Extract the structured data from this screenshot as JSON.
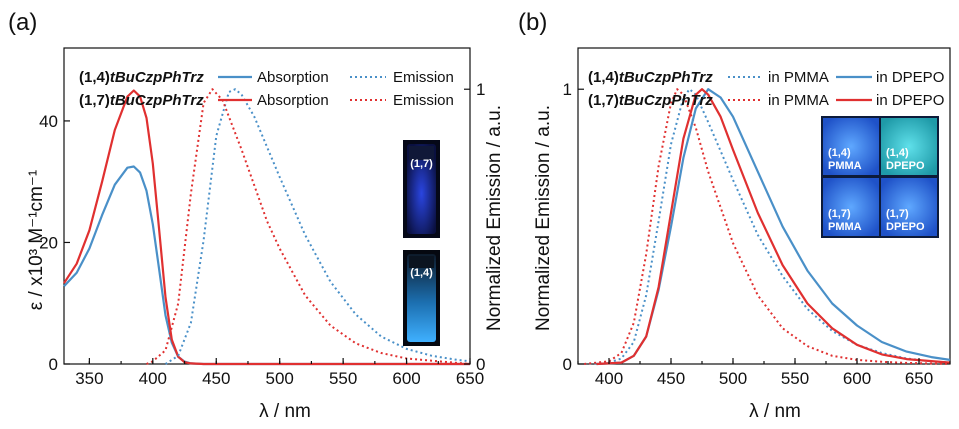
{
  "colors": {
    "blue": "#4a90c8",
    "red": "#e03030"
  },
  "chart_data": [
    {
      "panel": "(a)",
      "type": "line",
      "xlabel": "λ / nm",
      "ylabel_left": "ε / x10³ M⁻¹cm⁻¹",
      "ylabel_right": "Normalized Emission / a.u.",
      "xlim": [
        330,
        650
      ],
      "ylim_left": [
        0,
        52
      ],
      "ylim_right": [
        0,
        1.15
      ],
      "xticks": [
        "350",
        "400",
        "450",
        "500",
        "550",
        "600",
        "650"
      ],
      "yticks_left": [
        "0",
        "20",
        "40"
      ],
      "yticks_right": [
        "0",
        "1"
      ],
      "legend": [
        {
          "compound": "(1,4)",
          "compound_bold": "tBuCzpPhTrz",
          "solid": "Absorption",
          "dotted": "Emission"
        },
        {
          "compound": "(1,7)",
          "compound_bold": "tBuCzpPhTrz",
          "solid": "Absorption",
          "dotted": "Emission"
        }
      ],
      "inset_labels": [
        "(1,7)",
        "(1,4)"
      ],
      "series": [
        {
          "name": "(1,4)tBuCzpPhTrz Absorption",
          "axis": "left",
          "style": "solid",
          "color": "blue",
          "x": [
            330,
            340,
            350,
            360,
            370,
            380,
            385,
            390,
            395,
            400,
            405,
            410,
            415,
            420,
            425,
            430,
            440,
            450,
            650
          ],
          "y": [
            12.8,
            15,
            19,
            24.5,
            29.5,
            32.3,
            32.5,
            31.5,
            28.5,
            23,
            15.5,
            8,
            3.5,
            1.2,
            0.4,
            0.1,
            0,
            0,
            0
          ]
        },
        {
          "name": "(1,7)tBuCzpPhTrz Absorption",
          "axis": "left",
          "style": "solid",
          "color": "red",
          "x": [
            330,
            340,
            350,
            360,
            370,
            380,
            385,
            390,
            395,
            400,
            405,
            410,
            415,
            420,
            425,
            430,
            440,
            450,
            650
          ],
          "y": [
            13.3,
            16.5,
            22,
            30,
            38.5,
            44,
            45,
            44,
            40.5,
            33,
            22,
            11,
            4,
            1.2,
            0.3,
            0.1,
            0,
            0,
            0
          ]
        },
        {
          "name": "(1,4)tBuCzpPhTrz Emission",
          "axis": "right",
          "style": "dotted",
          "color": "blue",
          "x": [
            410,
            420,
            430,
            440,
            450,
            460,
            465,
            470,
            480,
            490,
            500,
            520,
            540,
            560,
            580,
            600,
            620,
            640,
            650
          ],
          "y": [
            0,
            0.03,
            0.15,
            0.45,
            0.83,
            0.99,
            1.0,
            0.98,
            0.9,
            0.79,
            0.68,
            0.47,
            0.3,
            0.18,
            0.1,
            0.055,
            0.03,
            0.015,
            0.01
          ]
        },
        {
          "name": "(1,7)tBuCzpPhTrz Emission",
          "axis": "right",
          "style": "dotted",
          "color": "red",
          "x": [
            395,
            400,
            410,
            420,
            430,
            440,
            447,
            455,
            460,
            470,
            480,
            490,
            500,
            520,
            540,
            560,
            580,
            600,
            650
          ],
          "y": [
            0,
            0.01,
            0.05,
            0.22,
            0.62,
            0.95,
            1.0,
            0.96,
            0.9,
            0.78,
            0.65,
            0.52,
            0.42,
            0.25,
            0.14,
            0.075,
            0.04,
            0.02,
            0
          ]
        }
      ]
    },
    {
      "panel": "(b)",
      "type": "line",
      "xlabel": "λ / nm",
      "ylabel": "Normalized Emission / a.u.",
      "xlim": [
        375,
        675
      ],
      "ylim": [
        0,
        1.15
      ],
      "xticks": [
        "400",
        "450",
        "500",
        "550",
        "600",
        "650"
      ],
      "yticks": [
        "0",
        "1"
      ],
      "legend": [
        {
          "compound": "(1,4)",
          "compound_bold": "tBuCzpPhTrz",
          "dotted": "in PMMA",
          "solid": "in DPEPO"
        },
        {
          "compound": "(1,7)",
          "compound_bold": "tBuCzpPhTrz",
          "dotted": "in PMMA",
          "solid": "in DPEPO"
        }
      ],
      "inset_labels": [
        [
          "(1,4)",
          "PMMA"
        ],
        [
          "(1,4)",
          "DPEPO"
        ],
        [
          "(1,7)",
          "PMMA"
        ],
        [
          "(1,7)",
          "DPEPO"
        ]
      ],
      "series": [
        {
          "name": "(1,4)tBuCzpPhTrz in PMMA",
          "style": "dotted",
          "color": "blue",
          "x": [
            380,
            400,
            410,
            420,
            430,
            440,
            450,
            460,
            465,
            470,
            480,
            500,
            520,
            540,
            560,
            580,
            600,
            620,
            640,
            660,
            675
          ],
          "y": [
            0,
            0.005,
            0.02,
            0.08,
            0.25,
            0.52,
            0.8,
            0.97,
            1.0,
            0.98,
            0.88,
            0.67,
            0.47,
            0.32,
            0.2,
            0.12,
            0.07,
            0.04,
            0.02,
            0.01,
            0.005
          ]
        },
        {
          "name": "(1,7)tBuCzpPhTrz in PMMA",
          "style": "dotted",
          "color": "red",
          "x": [
            380,
            400,
            410,
            420,
            430,
            440,
            450,
            455,
            460,
            470,
            480,
            500,
            520,
            540,
            560,
            580,
            600,
            620,
            640,
            675
          ],
          "y": [
            0,
            0.01,
            0.04,
            0.15,
            0.4,
            0.72,
            0.95,
            1.0,
            0.98,
            0.86,
            0.7,
            0.44,
            0.25,
            0.13,
            0.065,
            0.03,
            0.015,
            0.008,
            0.004,
            0
          ]
        },
        {
          "name": "(1,4)tBuCzpPhTrz in DPEPO",
          "style": "solid",
          "color": "blue",
          "x": [
            390,
            410,
            420,
            430,
            440,
            450,
            460,
            470,
            480,
            490,
            500,
            520,
            540,
            560,
            580,
            600,
            620,
            640,
            660,
            675
          ],
          "y": [
            0,
            0.005,
            0.03,
            0.1,
            0.27,
            0.5,
            0.75,
            0.93,
            1.0,
            0.97,
            0.9,
            0.7,
            0.5,
            0.34,
            0.22,
            0.14,
            0.08,
            0.045,
            0.025,
            0.015
          ]
        },
        {
          "name": "(1,7)tBuCzpPhTrz in DPEPO",
          "style": "solid",
          "color": "red",
          "x": [
            390,
            410,
            420,
            430,
            440,
            450,
            460,
            470,
            475,
            480,
            490,
            500,
            520,
            540,
            560,
            580,
            600,
            620,
            640,
            675
          ],
          "y": [
            0,
            0.005,
            0.03,
            0.1,
            0.28,
            0.55,
            0.82,
            0.98,
            1.0,
            0.98,
            0.9,
            0.78,
            0.55,
            0.36,
            0.22,
            0.13,
            0.07,
            0.035,
            0.018,
            0.005
          ]
        }
      ]
    }
  ]
}
